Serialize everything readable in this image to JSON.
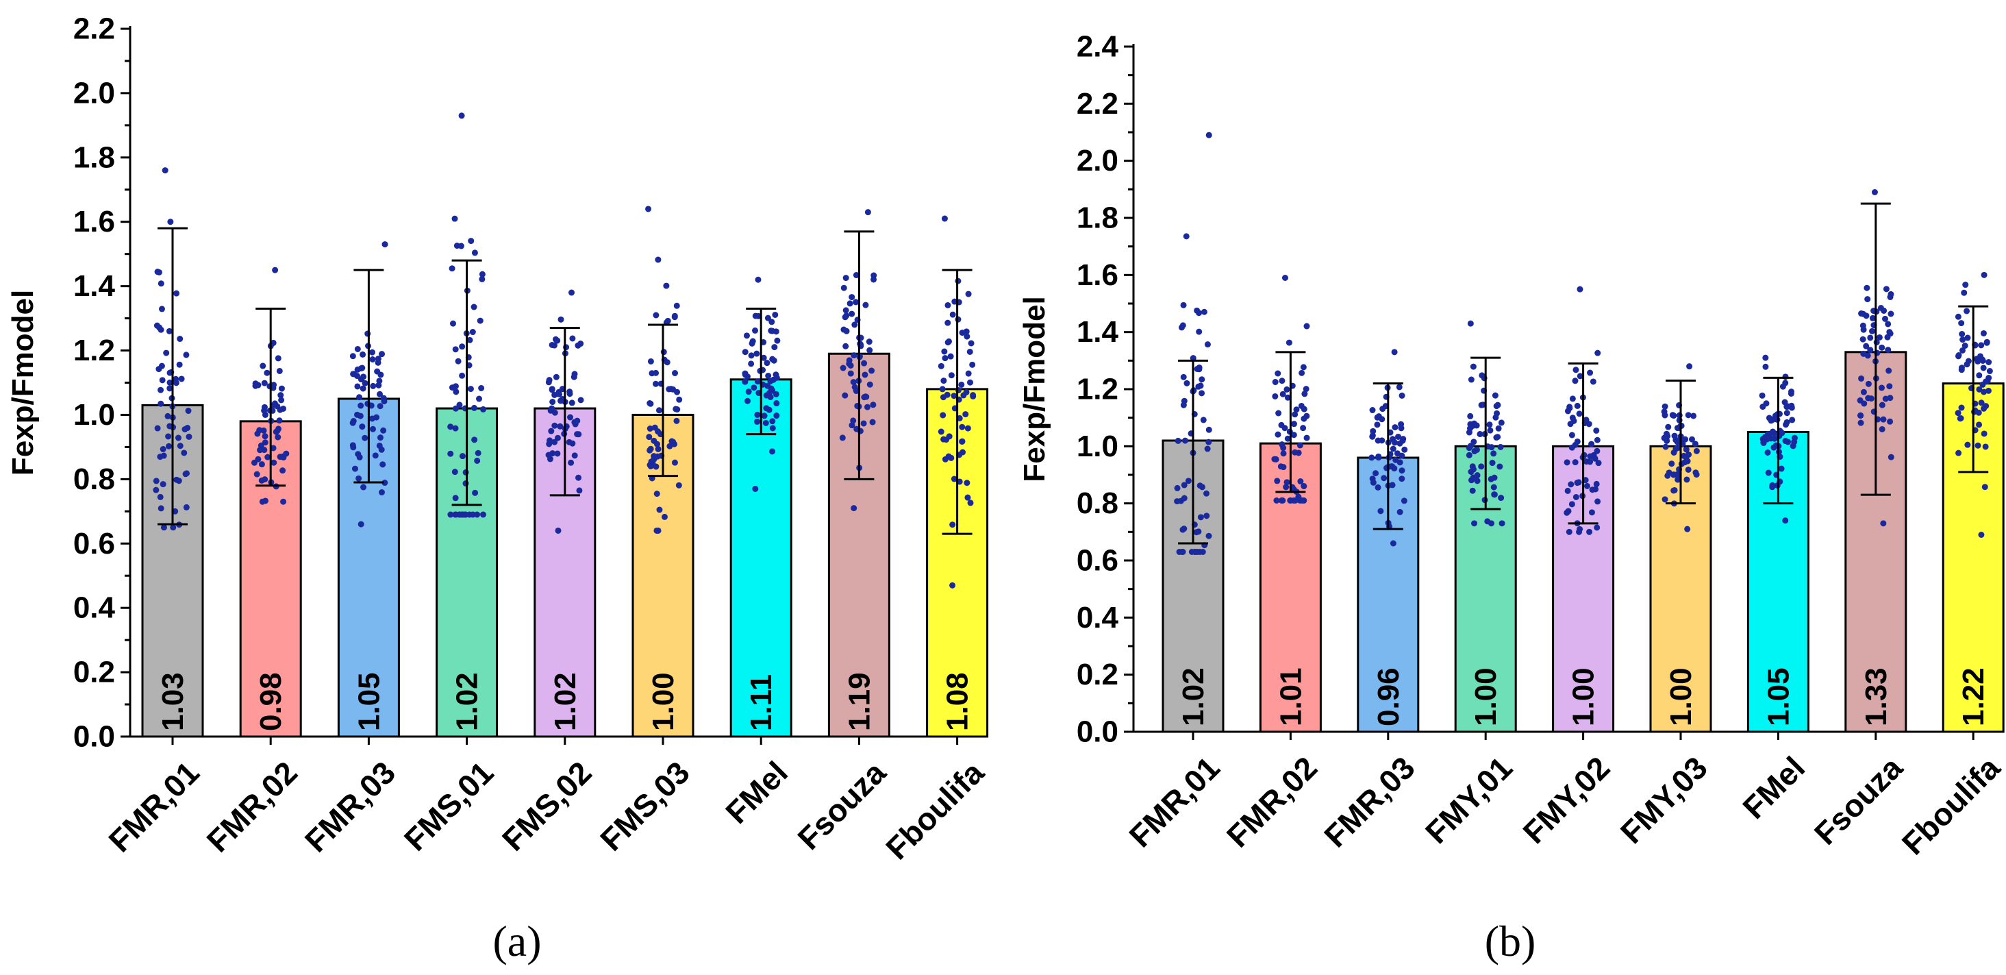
{
  "chart_data": [
    {
      "type": "bar",
      "panel_label": "(a)",
      "ylabel": "Fexp/Fmodel",
      "ylim": [
        0.0,
        2.2
      ],
      "ytick_step": 0.2,
      "yticks": [
        "0.0",
        "0.2",
        "0.4",
        "0.6",
        "0.8",
        "1.0",
        "1.2",
        "1.4",
        "1.6",
        "1.8",
        "2.0",
        "2.2"
      ],
      "categories": [
        "FMR,01",
        "FMR,02",
        "FMR,03",
        "FMS,01",
        "FMS,02",
        "FMS,03",
        "FMel",
        "Fsouza",
        "Fboulifa"
      ],
      "values": [
        1.03,
        0.98,
        1.05,
        1.02,
        1.02,
        1.0,
        1.11,
        1.19,
        1.08
      ],
      "value_labels": [
        "1.03",
        "0.98",
        "1.05",
        "1.02",
        "1.02",
        "1.00",
        "1.11",
        "1.19",
        "1.08"
      ],
      "error_low": [
        0.66,
        0.78,
        0.79,
        0.72,
        0.75,
        0.81,
        0.94,
        0.8,
        0.63
      ],
      "error_high": [
        1.58,
        1.33,
        1.45,
        1.48,
        1.27,
        1.28,
        1.33,
        1.57,
        1.45
      ],
      "points_min": [
        0.65,
        0.73,
        0.66,
        0.69,
        0.64,
        0.64,
        0.77,
        0.71,
        0.47
      ],
      "points_max": [
        1.76,
        1.45,
        1.53,
        1.93,
        1.38,
        1.64,
        1.42,
        1.63,
        1.61
      ],
      "bar_colors": [
        "#b2b2b2",
        "#ff9a9a",
        "#7ab8ef",
        "#6fdfb8",
        "#dcb3ee",
        "#ffd675",
        "#00f5f5",
        "#d8a7a7",
        "#ffff3a"
      ]
    },
    {
      "type": "bar",
      "panel_label": "(b)",
      "ylabel": "Fexp/Fmodel",
      "ylim": [
        0.0,
        2.4
      ],
      "ytick_step": 0.2,
      "yticks": [
        "0.0",
        "0.2",
        "0.4",
        "0.6",
        "0.8",
        "1.0",
        "1.2",
        "1.4",
        "1.6",
        "1.8",
        "2.0",
        "2.2",
        "2.4"
      ],
      "categories": [
        "FMR,01",
        "FMR,02",
        "FMR,03",
        "FMY,01",
        "FMY,02",
        "FMY,03",
        "FMel",
        "Fsouza",
        "Fboulifa"
      ],
      "values": [
        1.02,
        1.01,
        0.96,
        1.0,
        1.0,
        1.0,
        1.05,
        1.33,
        1.22
      ],
      "value_labels": [
        "1.02",
        "1.01",
        "0.96",
        "1.00",
        "1.00",
        "1.00",
        "1.05",
        "1.33",
        "1.22"
      ],
      "error_low": [
        0.66,
        0.84,
        0.71,
        0.78,
        0.73,
        0.8,
        0.8,
        0.83,
        0.91
      ],
      "error_high": [
        1.3,
        1.33,
        1.22,
        1.31,
        1.29,
        1.23,
        1.24,
        1.85,
        1.49
      ],
      "points_min": [
        0.63,
        0.81,
        0.66,
        0.73,
        0.7,
        0.71,
        0.74,
        0.73,
        0.69
      ],
      "points_max": [
        2.09,
        1.59,
        1.33,
        1.43,
        1.55,
        1.28,
        1.31,
        1.89,
        1.6
      ],
      "bar_colors": [
        "#b2b2b2",
        "#ff9a9a",
        "#7ab8ef",
        "#6fdfb8",
        "#dcb3ee",
        "#ffd675",
        "#00f5f5",
        "#d8a7a7",
        "#ffff3a"
      ]
    }
  ],
  "colors": {
    "points": "#1a2a9e",
    "axis": "#000000"
  }
}
